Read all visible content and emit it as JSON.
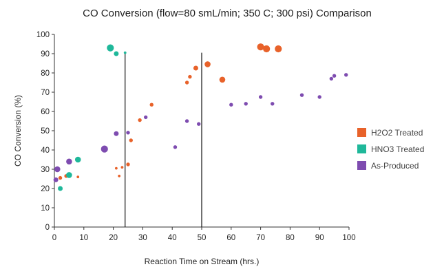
{
  "chart_data": {
    "type": "scatter",
    "title": "CO Conversion (flow=80 smL/min; 350 C; 300 psi) Comparison",
    "xlabel": "Reaction Time on Stream (hrs.)",
    "ylabel": "CO Conversion (%)",
    "xlim": [
      0,
      100
    ],
    "ylim": [
      0,
      100
    ],
    "x_ticks": [
      0,
      10,
      20,
      30,
      40,
      50,
      60,
      70,
      80,
      90,
      100
    ],
    "y_ticks": [
      0,
      10,
      20,
      30,
      40,
      50,
      60,
      70,
      80,
      90,
      100
    ],
    "grid": false,
    "legend_position": "right",
    "vertical_lines": [
      24,
      50
    ],
    "series": [
      {
        "name": "H2O2 Treated",
        "color": "#E8622A",
        "points": [
          {
            "x": 2,
            "y": 25.5,
            "size": 2
          },
          {
            "x": 4,
            "y": 26.5,
            "size": 2
          },
          {
            "x": 8,
            "y": 26,
            "size": 1
          },
          {
            "x": 21,
            "y": 30.5,
            "size": 1
          },
          {
            "x": 22,
            "y": 26.5,
            "size": 1
          },
          {
            "x": 23,
            "y": 31,
            "size": 1
          },
          {
            "x": 25,
            "y": 32.5,
            "size": 2
          },
          {
            "x": 26,
            "y": 45,
            "size": 2
          },
          {
            "x": 29,
            "y": 55.5,
            "size": 2
          },
          {
            "x": 33,
            "y": 63.5,
            "size": 2
          },
          {
            "x": 45,
            "y": 75,
            "size": 2
          },
          {
            "x": 46,
            "y": 78,
            "size": 2
          },
          {
            "x": 48,
            "y": 82.5,
            "size": 3
          },
          {
            "x": 52,
            "y": 84.5,
            "size": 4
          },
          {
            "x": 57,
            "y": 76.5,
            "size": 4
          },
          {
            "x": 70,
            "y": 93.5,
            "size": 5
          },
          {
            "x": 72,
            "y": 92.5,
            "size": 5
          },
          {
            "x": 76,
            "y": 92.5,
            "size": 5
          }
        ]
      },
      {
        "name": "HNO3 Treated",
        "color": "#1FB89A",
        "points": [
          {
            "x": 2,
            "y": 20,
            "size": 3
          },
          {
            "x": 5,
            "y": 27,
            "size": 4
          },
          {
            "x": 8,
            "y": 35,
            "size": 4
          },
          {
            "x": 19,
            "y": 93,
            "size": 5
          },
          {
            "x": 21,
            "y": 90,
            "size": 3
          },
          {
            "x": 24,
            "y": 90.5,
            "size": 1
          }
        ]
      },
      {
        "name": "As-Produced",
        "color": "#7E4CB0",
        "points": [
          {
            "x": 0.5,
            "y": 24.5,
            "size": 3
          },
          {
            "x": 1,
            "y": 30,
            "size": 4
          },
          {
            "x": 5,
            "y": 34,
            "size": 4
          },
          {
            "x": 17,
            "y": 40.5,
            "size": 5
          },
          {
            "x": 21,
            "y": 48.5,
            "size": 3
          },
          {
            "x": 25,
            "y": 49,
            "size": 2
          },
          {
            "x": 31,
            "y": 57,
            "size": 2
          },
          {
            "x": 41,
            "y": 41.5,
            "size": 2
          },
          {
            "x": 45,
            "y": 55,
            "size": 2
          },
          {
            "x": 49,
            "y": 53.5,
            "size": 2
          },
          {
            "x": 60,
            "y": 63.5,
            "size": 2
          },
          {
            "x": 65,
            "y": 64,
            "size": 2
          },
          {
            "x": 70,
            "y": 67.5,
            "size": 2
          },
          {
            "x": 74,
            "y": 64,
            "size": 2
          },
          {
            "x": 84,
            "y": 68.5,
            "size": 2
          },
          {
            "x": 90,
            "y": 67.5,
            "size": 2
          },
          {
            "x": 94,
            "y": 77,
            "size": 2
          },
          {
            "x": 95,
            "y": 78.5,
            "size": 2
          },
          {
            "x": 99,
            "y": 79,
            "size": 2
          }
        ]
      }
    ]
  }
}
